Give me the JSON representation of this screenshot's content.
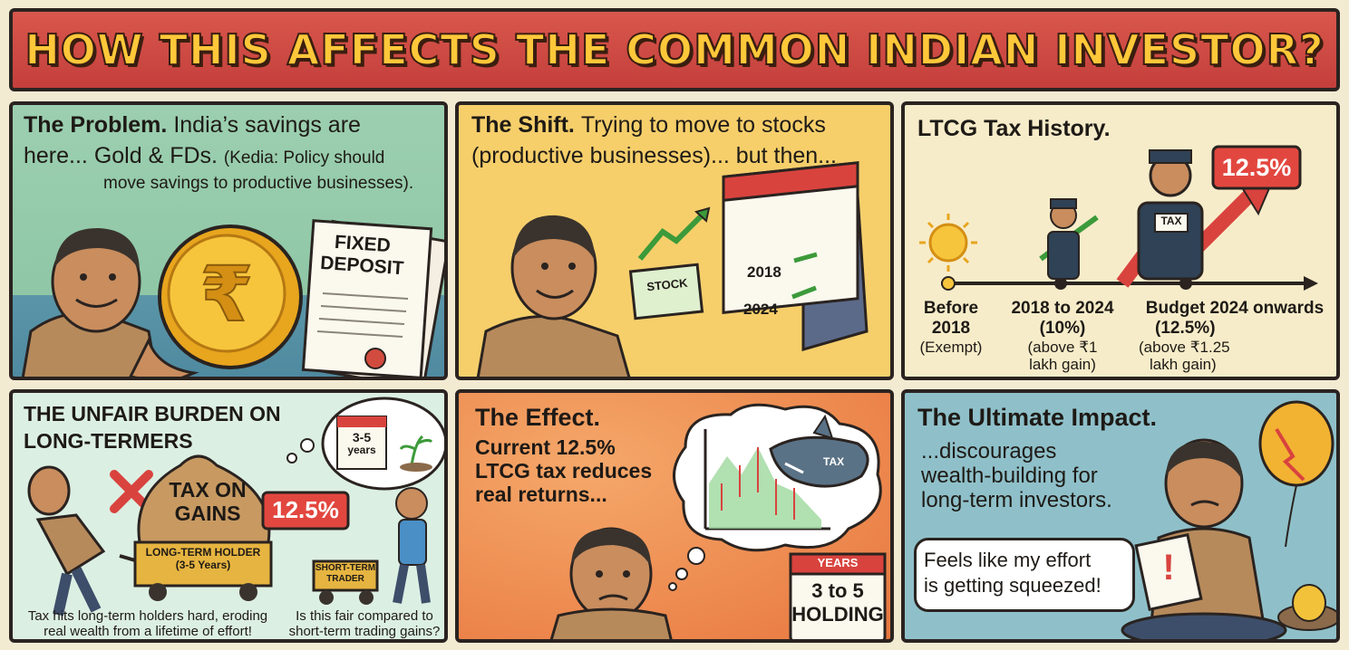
{
  "banner": {
    "title": "HOW THIS AFFECTS THE COMMON INDIAN INVESTOR?"
  },
  "panel1": {
    "heading": "The Problem.",
    "text_a": "India’s savings are",
    "text_b": "here... Gold & FDs.",
    "note_a": "(Kedia: Policy should",
    "note_b": "move savings to productive businesses).",
    "fd_line1": "FIXED",
    "fd_line2": "DEPOSIT",
    "coin_symbol": "₹"
  },
  "panel2": {
    "heading": "The Shift.",
    "text_a": "Trying to move to stocks",
    "text_b": "(productive businesses)... but then...",
    "stock_label": "STOCK",
    "year_a": "2018",
    "year_b": "2024"
  },
  "panel3": {
    "heading": "LTCG Tax History.",
    "badge": "12.5%",
    "tax_sign": "TAX",
    "m1_l1": "Before",
    "m1_l2": "2018",
    "m1_l3": "(Exempt)",
    "m2_l1": "2018 to 2024",
    "m2_l2": "(10%)",
    "m2_l3": "(above ₹1",
    "m2_l4": "lakh gain)",
    "m3_l1": "Budget 2024 onwards",
    "m3_l2": "(12.5%)",
    "m3_l3": "(above ₹1.25",
    "m3_l4": "lakh gain)"
  },
  "panel4": {
    "heading_a": "THE UNFAIR BURDEN ON",
    "heading_b": "LONG-TERMERS",
    "cal_a": "3-5",
    "cal_b": "years",
    "bag_a": "TAX ON",
    "bag_b": "GAINS",
    "badge": "12.5%",
    "cart_a": "LONG-TERM HOLDER",
    "cart_b": "(3-5 Years)",
    "trader_a": "SHORT-TERM",
    "trader_b": "TRADER",
    "cap_l_a": "Tax hits long-term holders hard, eroding",
    "cap_l_b": "real wealth from a lifetime of effort!",
    "cap_r_a": "Is this fair compared to",
    "cap_r_b": "short-term trading gains?"
  },
  "panel5": {
    "heading": "The Effect.",
    "text_a": "Current 12.5%",
    "text_b": "LTCG tax reduces",
    "text_c": "real returns...",
    "shark_label": "TAX",
    "cal_top": "YEARS",
    "cal_a": "3 to 5",
    "cal_b": "HOLDING"
  },
  "panel6": {
    "heading": "The Ultimate Impact.",
    "text_a": "...discourages",
    "text_b": "wealth-building for",
    "text_c": "long-term investors.",
    "bubble_a": "Feels like my effort",
    "bubble_b": "is getting squeezed!",
    "paper_mark": "!"
  },
  "colors": {
    "banner": "#cf4a45",
    "banner_text": "#ffc83a",
    "panel1": "#8fc7a6",
    "panel2": "#f6cf6b",
    "panel3": "#f7ecc9",
    "panel4": "#dcefe3",
    "panel5": "#ee8f55",
    "panel6": "#8fc0c9",
    "badge_red": "#e2473f",
    "arrow_green": "#3c9a3a"
  }
}
